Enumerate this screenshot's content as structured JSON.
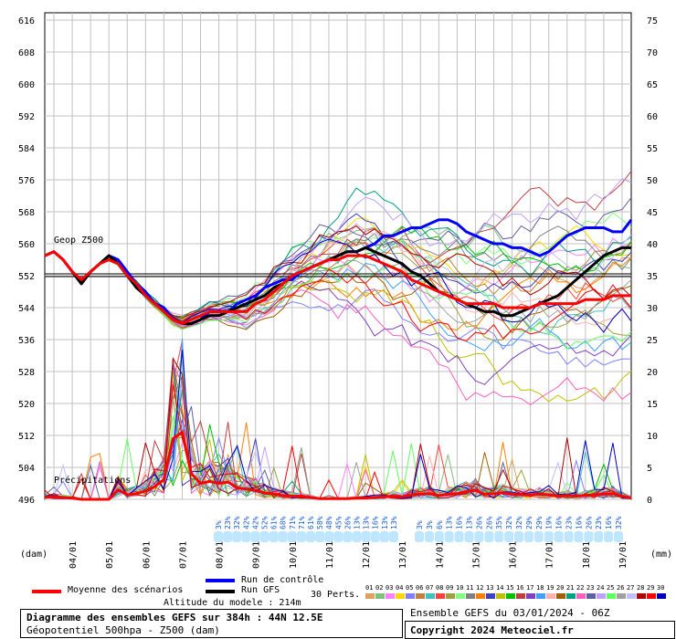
{
  "chart_data": {
    "type": "line",
    "title": "Diagramme des ensembles GEFS sur 384h : 44N 12.5E",
    "subtitle": "Géopotentiel 500hpa - Z500 (dam)",
    "left_axis": {
      "label": "(dam)",
      "range": [
        496,
        616
      ],
      "ticks": [
        "616",
        "608",
        "600",
        "592",
        "584",
        "576",
        "568",
        "560",
        "552",
        "544",
        "536",
        "528",
        "520",
        "512",
        "504",
        "496"
      ]
    },
    "right_axis": {
      "label": "(mm)",
      "range": [
        0,
        75
      ],
      "ticks": [
        "75",
        "70",
        "65",
        "60",
        "55",
        "50",
        "45",
        "40",
        "35",
        "30",
        "25",
        "20",
        "15",
        "10",
        "5",
        "0"
      ]
    },
    "x_axis": {
      "ticks": [
        "04/01",
        "05/01",
        "06/01",
        "07/01",
        "08/01",
        "09/01",
        "10/01",
        "11/01",
        "12/01",
        "13/01",
        "14/01",
        "15/01",
        "16/01",
        "17/01",
        "18/01",
        "19/01"
      ],
      "range_hours": [
        0,
        384
      ]
    },
    "annotations": {
      "geop_label": "Geop Z500",
      "precip_label": "Précipitations",
      "reference_line": 552
    },
    "snow_percent_labels": [
      "3%",
      "23%",
      "32%",
      "42%",
      "42%",
      "52%",
      "61%",
      "68%",
      "71%",
      "71%",
      "61%",
      "58%",
      "48%",
      "45%",
      "26%",
      "13%",
      "13%",
      "16%",
      "13%",
      "13%",
      "3%",
      "3%",
      "6%",
      "13%",
      "16%",
      "13%",
      "26%",
      "26%",
      "35%",
      "32%",
      "32%",
      "29%",
      "29%",
      "19%",
      "16%",
      "23%",
      "16%",
      "26%",
      "23%",
      "16%",
      "32%"
    ],
    "series": [
      {
        "name": "Run de contrôle",
        "color": "#0000ff",
        "x": [
          0,
          6,
          12,
          18,
          24,
          30,
          36,
          42,
          48,
          54,
          60,
          66,
          72,
          78,
          84,
          90,
          96,
          102,
          108,
          114,
          120,
          126,
          132,
          138,
          144,
          150,
          156,
          162,
          168,
          174,
          180,
          186,
          192,
          198,
          204,
          210,
          216,
          222,
          228,
          234,
          240,
          246,
          252,
          258,
          264,
          270,
          276,
          282,
          288,
          294,
          300,
          306,
          312,
          318,
          324,
          330,
          336,
          342,
          348,
          354,
          360,
          366,
          372,
          378,
          384
        ],
        "values": [
          557,
          558,
          556,
          553,
          550,
          553,
          555,
          557,
          556,
          553,
          550,
          548,
          545,
          544,
          541,
          540,
          540,
          541,
          543,
          543,
          543,
          545,
          546,
          547,
          549,
          550,
          551,
          551,
          553,
          554,
          555,
          556,
          557,
          558,
          558,
          559,
          560,
          562,
          562,
          563,
          564,
          564,
          565,
          566,
          566,
          565,
          563,
          562,
          561,
          560,
          560,
          559,
          559,
          558,
          557,
          558,
          560,
          562,
          563,
          564,
          564,
          564,
          563,
          563,
          566
        ]
      },
      {
        "name": "Run GFS",
        "color": "#000000",
        "x": [
          0,
          6,
          12,
          18,
          24,
          30,
          36,
          42,
          48,
          54,
          60,
          66,
          72,
          78,
          84,
          90,
          96,
          102,
          108,
          114,
          120,
          126,
          132,
          138,
          144,
          150,
          156,
          162,
          168,
          174,
          180,
          186,
          192,
          198,
          204,
          210,
          216,
          222,
          228,
          234,
          240,
          246,
          252,
          258,
          264,
          270,
          276,
          282,
          288,
          294,
          300,
          306,
          312,
          318,
          324,
          330,
          336,
          342,
          348,
          354,
          360,
          366,
          372,
          378,
          384
        ],
        "values": [
          557,
          558,
          556,
          553,
          550,
          553,
          555,
          557,
          555,
          552,
          549,
          547,
          545,
          543,
          541,
          540,
          540,
          541,
          542,
          542,
          543,
          544,
          545,
          546,
          547,
          549,
          550,
          552,
          553,
          554,
          555,
          556,
          557,
          558,
          558,
          559,
          558,
          557,
          556,
          555,
          553,
          552,
          550,
          548,
          547,
          546,
          545,
          544,
          543,
          543,
          542,
          542,
          543,
          544,
          545,
          546,
          547,
          549,
          551,
          553,
          555,
          557,
          558,
          559,
          559
        ]
      },
      {
        "name": "Moyenne des scénarios",
        "color": "#ff0000",
        "x": [
          0,
          6,
          12,
          18,
          24,
          30,
          36,
          42,
          48,
          54,
          60,
          66,
          72,
          78,
          84,
          90,
          96,
          102,
          108,
          114,
          120,
          126,
          132,
          138,
          144,
          150,
          156,
          162,
          168,
          174,
          180,
          186,
          192,
          198,
          204,
          210,
          216,
          222,
          228,
          234,
          240,
          246,
          252,
          258,
          264,
          270,
          276,
          282,
          288,
          294,
          300,
          306,
          312,
          318,
          324,
          330,
          336,
          342,
          348,
          354,
          360,
          366,
          372,
          378,
          384
        ],
        "values": [
          557,
          558,
          556,
          553,
          551,
          553,
          555,
          556,
          555,
          552,
          550,
          547,
          545,
          543,
          541,
          540,
          541,
          542,
          543,
          543,
          543,
          543,
          543,
          545,
          546,
          548,
          550,
          552,
          553,
          554,
          555,
          556,
          556,
          557,
          557,
          557,
          556,
          555,
          554,
          553,
          551,
          550,
          549,
          548,
          547,
          546,
          545,
          545,
          545,
          545,
          544,
          544,
          544,
          544,
          545,
          545,
          545,
          545,
          545,
          546,
          546,
          546,
          547,
          547,
          547
        ]
      }
    ],
    "precip_mean": {
      "name": "Moyenne des scénarios (mm)",
      "x": [
        0,
        6,
        12,
        18,
        24,
        30,
        36,
        42,
        48,
        54,
        60,
        66,
        72,
        78,
        84,
        90,
        96,
        102,
        108,
        114,
        120,
        126,
        132,
        138,
        144,
        150,
        156,
        162,
        168,
        174,
        180,
        186,
        192,
        198,
        204,
        210,
        216,
        222,
        228,
        234,
        240,
        246,
        252,
        258,
        264,
        270,
        276,
        282,
        288,
        294,
        300,
        306,
        312,
        318,
        324,
        330,
        336,
        342,
        348,
        354,
        360,
        366,
        372,
        378,
        384
      ],
      "values": [
        0.3,
        0.4,
        0.3,
        0.2,
        0,
        0,
        0,
        0,
        1.5,
        0.7,
        0.9,
        1.3,
        2.0,
        3.1,
        9.5,
        10.5,
        4.0,
        2.5,
        2.8,
        2.5,
        2.7,
        1.8,
        1.6,
        1.4,
        1.0,
        0.8,
        0.6,
        0.5,
        0.5,
        0.3,
        0.1,
        0.1,
        0.1,
        0.1,
        0.2,
        0.2,
        0.3,
        0.4,
        0.5,
        0.4,
        0.7,
        0.8,
        0.9,
        0.6,
        0.8,
        0.9,
        1.2,
        1.4,
        0.8,
        0.9,
        1.0,
        0.8,
        0.7,
        0.7,
        0.8,
        0.7,
        0.5,
        0.6,
        0.5,
        0.6,
        0.7,
        0.8,
        0.9,
        0.5,
        0.2
      ]
    }
  },
  "legend": {
    "control": "Run de contrôle",
    "gfs": "Run GFS",
    "mean": "Moyenne des scénarios",
    "perts": "30 Perts.",
    "pert_numbers": [
      "01",
      "02",
      "03",
      "04",
      "05",
      "06",
      "07",
      "08",
      "09",
      "10",
      "11",
      "12",
      "13",
      "14",
      "15",
      "16",
      "17",
      "18",
      "19",
      "20",
      "21",
      "22",
      "23",
      "24",
      "25",
      "26",
      "27",
      "28",
      "29",
      "30"
    ],
    "pert_colors": [
      "#e0a060",
      "#7fbf7f",
      "#ff80ff",
      "#ffd700",
      "#8080ff",
      "#c08040",
      "#40c0c0",
      "#ff4040",
      "#a0a040",
      "#80ff80",
      "#808080",
      "#ff8000",
      "#4040c0",
      "#c0c000",
      "#00c000",
      "#c04040",
      "#8040c0",
      "#40a0ff",
      "#ffb0b0",
      "#a06000",
      "#00a080",
      "#ff60c0",
      "#6060a0",
      "#c0a0ff",
      "#60ff60",
      "#a0a0a0",
      "#c0c0ff",
      "#b00000",
      "#ff0000",
      "#0000c0"
    ]
  },
  "footer": {
    "altitude": "Altitude du modele : 214m",
    "title_line": "Diagramme des ensembles GEFS sur 384h : 44N 12.5E",
    "subtitle_line": "Géopotentiel 500hpa - Z500 (dam)",
    "ensemble": "Ensemble GEFS du 03/01/2024 - 06Z",
    "copyright": "Copyright 2024 Meteociel.fr"
  }
}
